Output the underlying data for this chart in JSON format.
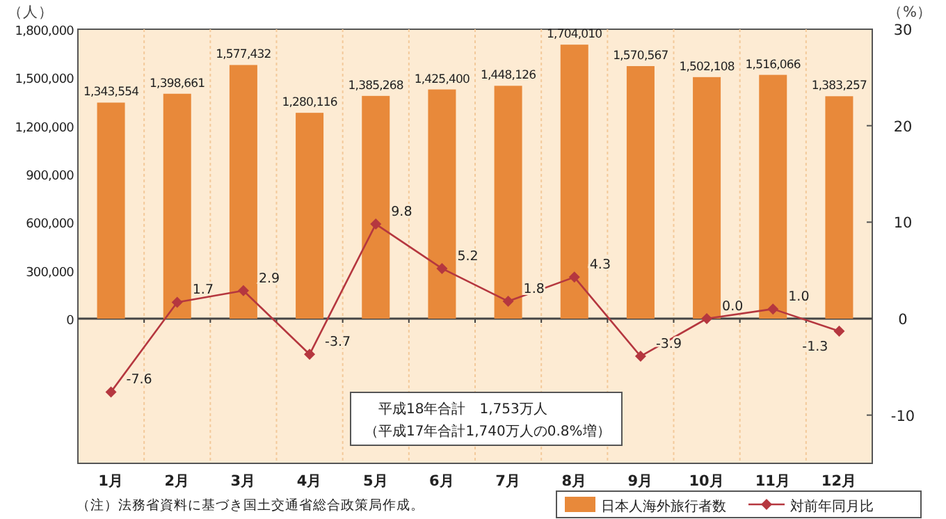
{
  "chart_data": {
    "type": "bar",
    "ylabel": "（人）",
    "y2label": "（%）",
    "categories": [
      "1月",
      "2月",
      "3月",
      "4月",
      "5月",
      "6月",
      "7月",
      "8月",
      "9月",
      "10月",
      "11月",
      "12月"
    ],
    "series": [
      {
        "name": "日本人海外旅行者数",
        "color": "#e8893a",
        "values": [
          1343554,
          1398661,
          1577432,
          1280116,
          1385268,
          1425400,
          1448126,
          1704010,
          1570567,
          1502108,
          1516066,
          1383257
        ],
        "value_labels": [
          "1,343,554",
          "1,398,661",
          "1,577,432",
          "1,280,116",
          "1,385,268",
          "1,425,400",
          "1,448,126",
          "1,704,010",
          "1,570,567",
          "1,502,108",
          "1,516,066",
          "1,383,257"
        ]
      },
      {
        "name": "対前年同月比",
        "type": "line",
        "axis": "y2",
        "color": "#b5373f",
        "values": [
          -7.6,
          1.7,
          2.9,
          -3.7,
          9.8,
          5.2,
          1.8,
          4.3,
          -3.9,
          0.0,
          1.0,
          -1.3
        ],
        "value_labels": [
          "-7.6",
          "1.7",
          "2.9",
          "-3.7",
          "9.8",
          "5.2",
          "1.8",
          "4.3",
          "-3.9",
          "0.0",
          "1.0",
          "-1.3"
        ]
      }
    ],
    "ylim": [
      -900000,
      1800000
    ],
    "yticks": [
      {
        "value": 0,
        "label": "0"
      },
      {
        "value": 300000,
        "label": "300,000"
      },
      {
        "value": 600000,
        "label": "600,000"
      },
      {
        "value": 900000,
        "label": "900,000"
      },
      {
        "value": 1200000,
        "label": "1,200,000"
      },
      {
        "value": 1500000,
        "label": "1,500,000"
      },
      {
        "value": 1800000,
        "label": "1,800,000"
      }
    ],
    "y2lim": [
      -15,
      30
    ],
    "y2ticks": [
      -10,
      0,
      10,
      20,
      30
    ],
    "marker": "diamond",
    "grid": "x",
    "legend": "bottom right",
    "annotations": [
      "平成18年合計　1,753万人",
      "（平成17年合計1,740万人の0.8%増）",
      "（注）法務省資料に基づき国土交通省総合政策局作成。"
    ]
  }
}
